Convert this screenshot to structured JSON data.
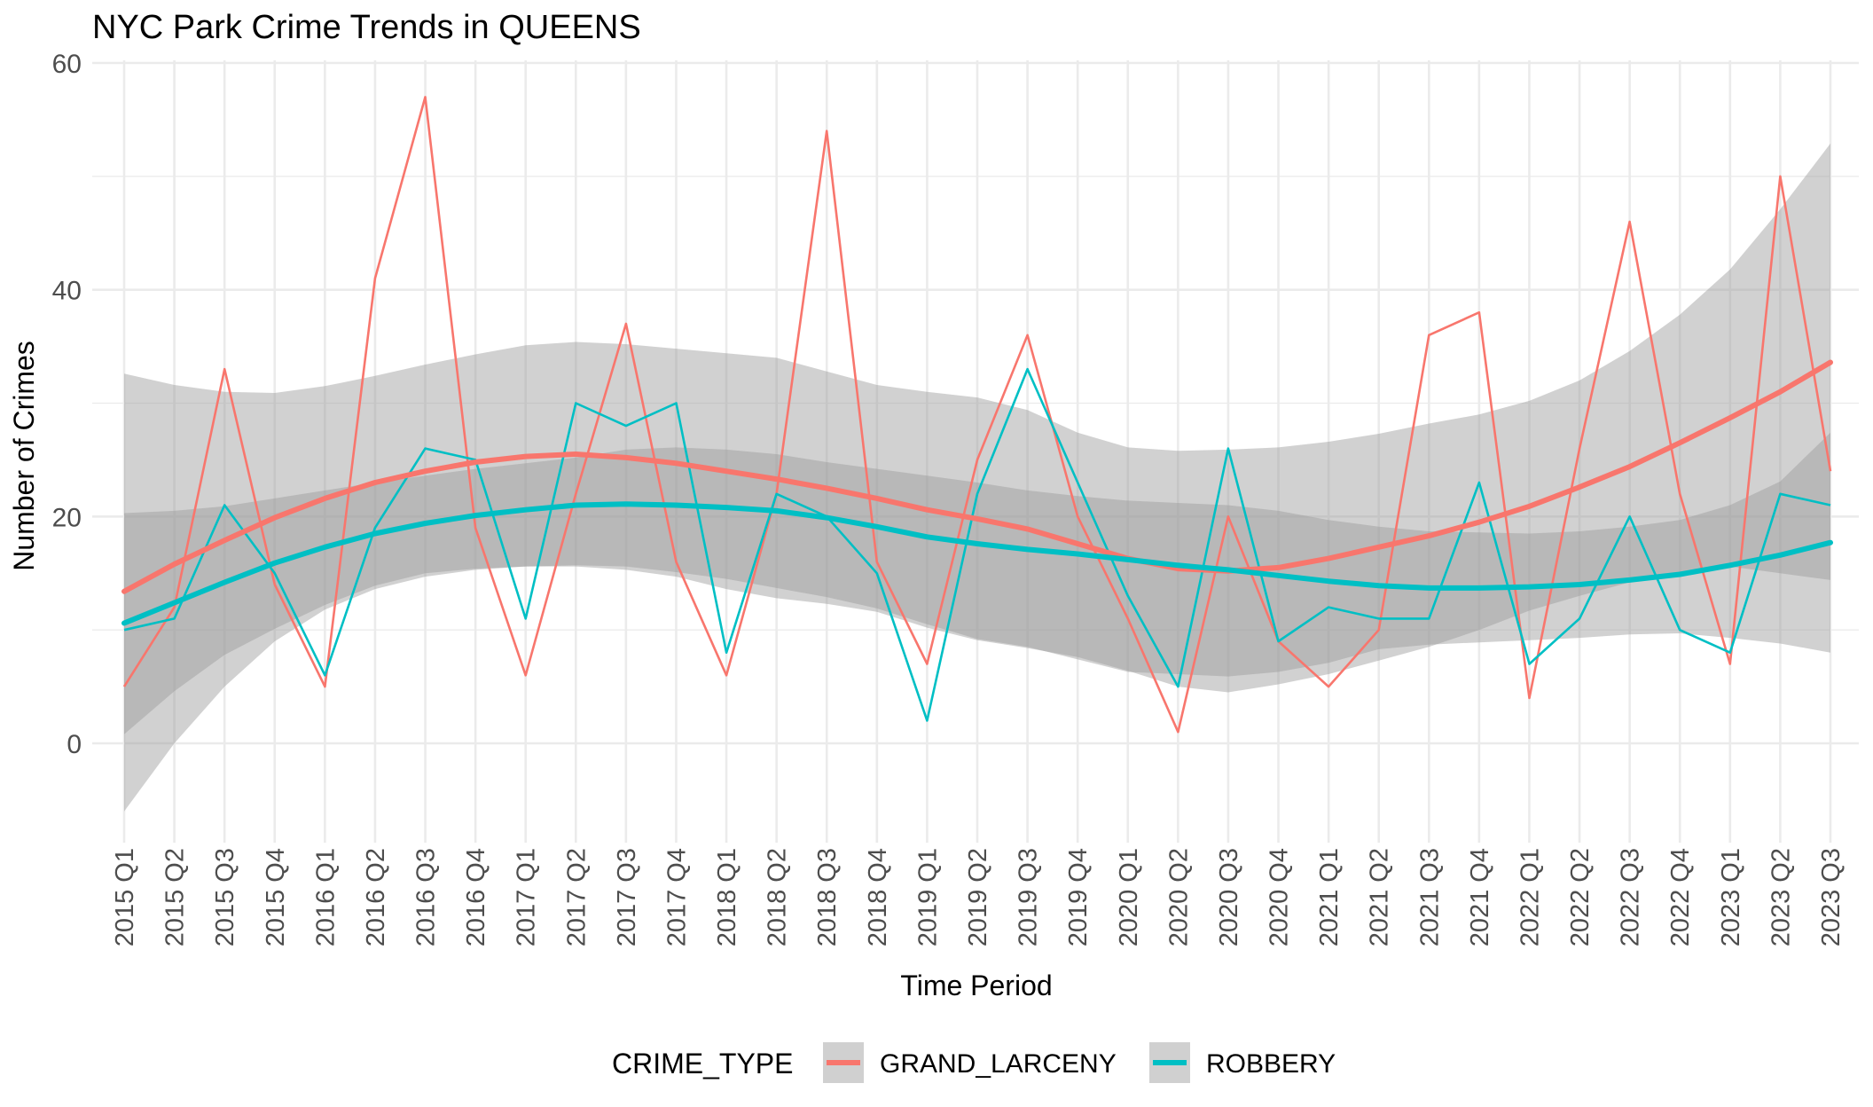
{
  "chart_data": {
    "type": "line",
    "title": "NYC Park Crime Trends in QUEENS",
    "xlabel": "Time Period",
    "ylabel": "Number of Crimes",
    "ylim": [
      -9,
      60
    ],
    "yticks": [
      0,
      20,
      40,
      60
    ],
    "grid": true,
    "legend_position": "bottom",
    "legend_title": "CRIME_TYPE",
    "categories": [
      "2015 Q1",
      "2015 Q2",
      "2015 Q3",
      "2015 Q4",
      "2016 Q1",
      "2016 Q2",
      "2016 Q3",
      "2016 Q4",
      "2017 Q1",
      "2017 Q2",
      "2017 Q3",
      "2017 Q4",
      "2018 Q1",
      "2018 Q2",
      "2018 Q3",
      "2018 Q4",
      "2019 Q1",
      "2019 Q2",
      "2019 Q3",
      "2019 Q4",
      "2020 Q1",
      "2020 Q2",
      "2020 Q3",
      "2020 Q4",
      "2021 Q1",
      "2021 Q2",
      "2021 Q3",
      "2021 Q4",
      "2022 Q1",
      "2022 Q2",
      "2022 Q3",
      "2022 Q4",
      "2023 Q1",
      "2023 Q2",
      "2023 Q3"
    ],
    "series": [
      {
        "name": "GRAND_LARCENY",
        "color": "#F8766D",
        "values": [
          5,
          12,
          33,
          14,
          5,
          41,
          57,
          19,
          6,
          22,
          37,
          16,
          6,
          22,
          54,
          16,
          7,
          25,
          36,
          20,
          11,
          1,
          20,
          9,
          5,
          10,
          36,
          38,
          4,
          26,
          46,
          22,
          7,
          50,
          24
        ],
        "smooth": [
          13.4,
          15.8,
          17.9,
          19.9,
          21.6,
          23.0,
          24.0,
          24.8,
          25.3,
          25.5,
          25.2,
          24.7,
          24.0,
          23.3,
          22.5,
          21.6,
          20.6,
          19.8,
          18.9,
          17.6,
          16.3,
          15.4,
          15.2,
          15.5,
          16.3,
          17.3,
          18.3,
          19.5,
          20.9,
          22.6,
          24.4,
          26.5,
          28.7,
          31.0,
          33.6
        ],
        "se_upper": [
          32.6,
          31.6,
          31.0,
          30.9,
          31.5,
          32.4,
          33.4,
          34.3,
          35.1,
          35.4,
          35.2,
          34.8,
          34.4,
          34.0,
          32.8,
          31.6,
          31.0,
          30.5,
          29.4,
          27.4,
          26.1,
          25.8,
          25.9,
          26.1,
          26.6,
          27.3,
          28.2,
          29.0,
          30.2,
          32.0,
          34.6,
          37.8,
          41.8,
          47.1,
          52.9
        ],
        "se_lower": [
          -6.0,
          0.0,
          5.0,
          9.0,
          11.8,
          13.6,
          14.7,
          15.3,
          15.6,
          15.6,
          15.3,
          14.7,
          13.6,
          12.8,
          12.3,
          11.6,
          10.2,
          9.1,
          8.4,
          7.6,
          6.4,
          5.0,
          4.5,
          5.2,
          6.1,
          7.3,
          8.5,
          10.0,
          11.7,
          13.0,
          14.2,
          15.1,
          15.6,
          15.0,
          14.4
        ]
      },
      {
        "name": "ROBBERY",
        "color": "#00BFC4",
        "values": [
          10,
          11,
          21,
          15,
          6,
          19,
          26,
          25,
          11,
          30,
          28,
          30,
          8,
          22,
          20,
          15,
          2,
          22,
          33,
          23,
          13,
          5,
          26,
          9,
          12,
          11,
          11,
          23,
          7,
          11,
          20,
          10,
          8,
          22,
          21
        ],
        "smooth": [
          10.6,
          12.4,
          14.2,
          15.9,
          17.3,
          18.5,
          19.4,
          20.1,
          20.6,
          21.0,
          21.1,
          21.0,
          20.8,
          20.5,
          19.9,
          19.1,
          18.2,
          17.6,
          17.1,
          16.7,
          16.2,
          15.7,
          15.3,
          14.8,
          14.3,
          13.9,
          13.7,
          13.7,
          13.8,
          14.0,
          14.4,
          14.9,
          15.7,
          16.6,
          17.7
        ],
        "se_upper": [
          20.3,
          20.5,
          20.9,
          21.6,
          22.3,
          23.0,
          23.6,
          24.2,
          24.7,
          25.2,
          25.9,
          26.1,
          25.9,
          25.5,
          24.8,
          24.2,
          23.6,
          23.0,
          22.3,
          21.8,
          21.4,
          21.2,
          21.0,
          20.5,
          19.7,
          19.1,
          18.7,
          18.6,
          18.5,
          18.7,
          19.1,
          19.7,
          21.0,
          23.1,
          27.4
        ],
        "se_lower": [
          0.8,
          4.6,
          7.8,
          10.1,
          12.2,
          13.9,
          15.0,
          15.4,
          15.6,
          15.7,
          15.6,
          15.1,
          14.5,
          13.7,
          12.9,
          11.9,
          10.5,
          9.2,
          8.5,
          7.4,
          6.3,
          6.1,
          5.9,
          6.3,
          7.1,
          8.3,
          8.7,
          8.9,
          9.1,
          9.3,
          9.6,
          9.7,
          9.3,
          8.8,
          8.0
        ]
      }
    ]
  }
}
